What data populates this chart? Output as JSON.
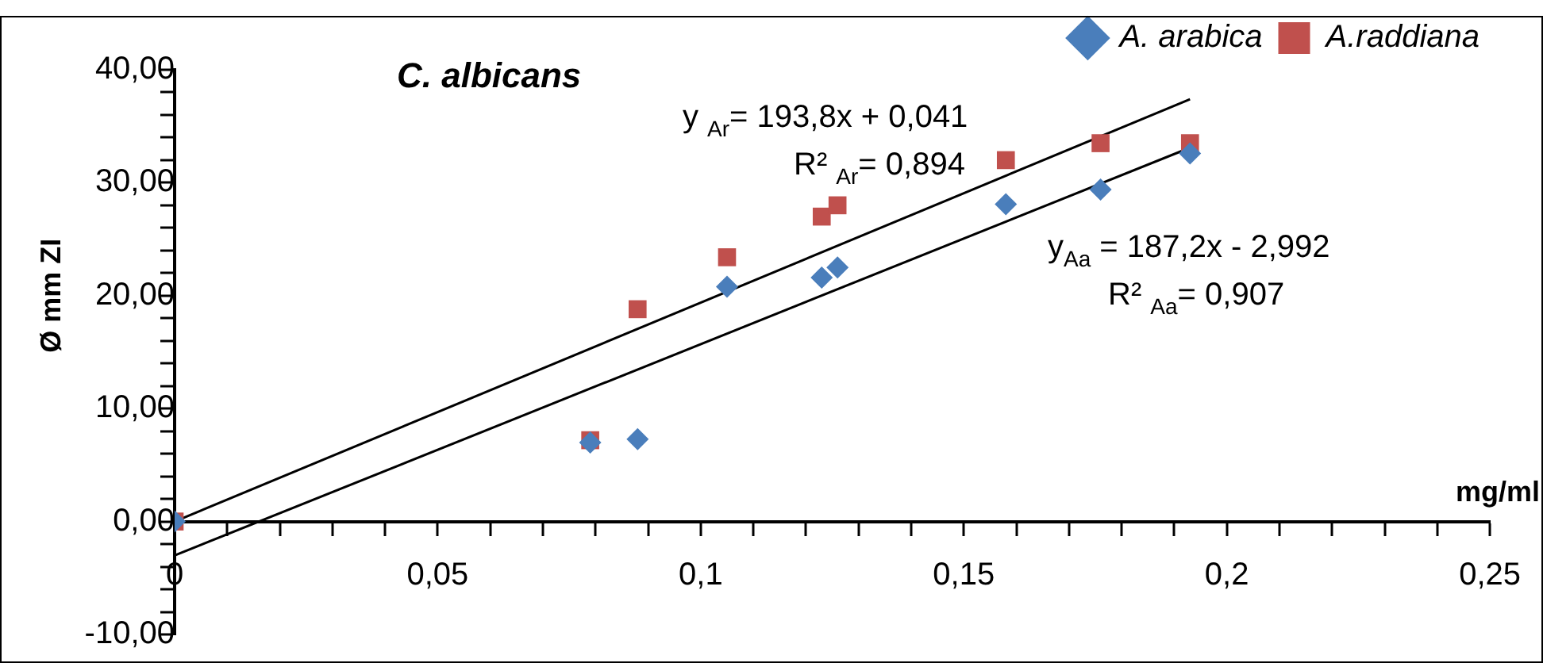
{
  "chart_data": {
    "type": "scatter",
    "title": "C. albicans",
    "xlabel": "mg/ml",
    "ylabel": "Ø mm ZI",
    "annotations": [
      "y $_{Ar}$= 193,8x + 0,041",
      "R² $_{Ar}$= 0,894",
      "y$_{Aa}$ = 187,2x - 2,992",
      "R² $_{Aa}$= 0,907"
    ],
    "series": [
      {
        "name": "A. arabica",
        "color": "#4a7ebb",
        "marker": "diamond",
        "x": [
          0,
          0.079,
          0.088,
          0.105,
          0.123,
          0.126,
          0.158,
          0.176,
          0.193
        ],
        "values": [
          0,
          7,
          7.3,
          20.8,
          21.6,
          22.5,
          28.1,
          29.4,
          32.6
        ]
      },
      {
        "name": "A.raddiana",
        "color": "#c0504d",
        "marker": "square",
        "x": [
          0,
          0.079,
          0.088,
          0.105,
          0.123,
          0.126,
          0.158,
          0.176,
          0.193
        ],
        "values": [
          0,
          7.2,
          18.8,
          23.4,
          27,
          28,
          32,
          33.5,
          33.5
        ]
      },
      {
        "type": "line",
        "color": "#000000",
        "marker": "none",
        "x": [
          0,
          0.193
        ],
        "values": [
          0,
          37.4
        ]
      },
      {
        "type": "line",
        "color": "#000000",
        "marker": "none",
        "x": [
          0,
          0.193
        ],
        "values": [
          -3,
          33.1
        ]
      }
    ],
    "xlim": [
      0,
      0.25
    ],
    "xticks": [
      {
        "value": 0,
        "label": "0"
      },
      {
        "value": 0.01,
        "label": null
      },
      {
        "value": 0.02,
        "label": null
      },
      {
        "value": 0.03,
        "label": null
      },
      {
        "value": 0.04,
        "label": null
      },
      {
        "value": 0.05,
        "label": "0,05"
      },
      {
        "value": 0.06,
        "label": null
      },
      {
        "value": 0.07,
        "label": null
      },
      {
        "value": 0.08,
        "label": null
      },
      {
        "value": 0.09,
        "label": null
      },
      {
        "value": 0.1,
        "label": "0,1"
      },
      {
        "value": 0.11,
        "label": null
      },
      {
        "value": 0.12,
        "label": null
      },
      {
        "value": 0.13,
        "label": null
      },
      {
        "value": 0.14,
        "label": null
      },
      {
        "value": 0.15,
        "label": "0,15"
      },
      {
        "value": 0.16,
        "label": null
      },
      {
        "value": 0.17,
        "label": null
      },
      {
        "value": 0.18,
        "label": null
      },
      {
        "value": 0.19,
        "label": null
      },
      {
        "value": 0.2,
        "label": "0,2"
      },
      {
        "value": 0.21,
        "label": null
      },
      {
        "value": 0.22,
        "label": null
      },
      {
        "value": 0.23,
        "label": null
      },
      {
        "value": 0.24,
        "label": null
      },
      {
        "value": 0.25,
        "label": "0,25"
      }
    ],
    "ylim": [
      -10,
      40
    ],
    "yticks": [
      {
        "value": -10,
        "label": "-10,00"
      },
      {
        "value": -8,
        "label": null
      },
      {
        "value": -6,
        "label": null
      },
      {
        "value": -4,
        "label": null
      },
      {
        "value": -2,
        "label": null
      },
      {
        "value": 0,
        "label": "0,00"
      },
      {
        "value": 2,
        "label": null
      },
      {
        "value": 4,
        "label": null
      },
      {
        "value": 6,
        "label": null
      },
      {
        "value": 8,
        "label": null
      },
      {
        "value": 10,
        "label": "10,00"
      },
      {
        "value": 12,
        "label": null
      },
      {
        "value": 14,
        "label": null
      },
      {
        "value": 16,
        "label": null
      },
      {
        "value": 18,
        "label": null
      },
      {
        "value": 20,
        "label": "20,00"
      },
      {
        "value": 22,
        "label": null
      },
      {
        "value": 24,
        "label": null
      },
      {
        "value": 26,
        "label": null
      },
      {
        "value": 28,
        "label": null
      },
      {
        "value": 30,
        "label": "30,00"
      },
      {
        "value": 32,
        "label": null
      },
      {
        "value": 34,
        "label": null
      },
      {
        "value": 36,
        "label": null
      },
      {
        "value": 38,
        "label": null
      },
      {
        "value": 40,
        "label": "40,00"
      }
    ],
    "grid": false,
    "legend": "top right"
  }
}
